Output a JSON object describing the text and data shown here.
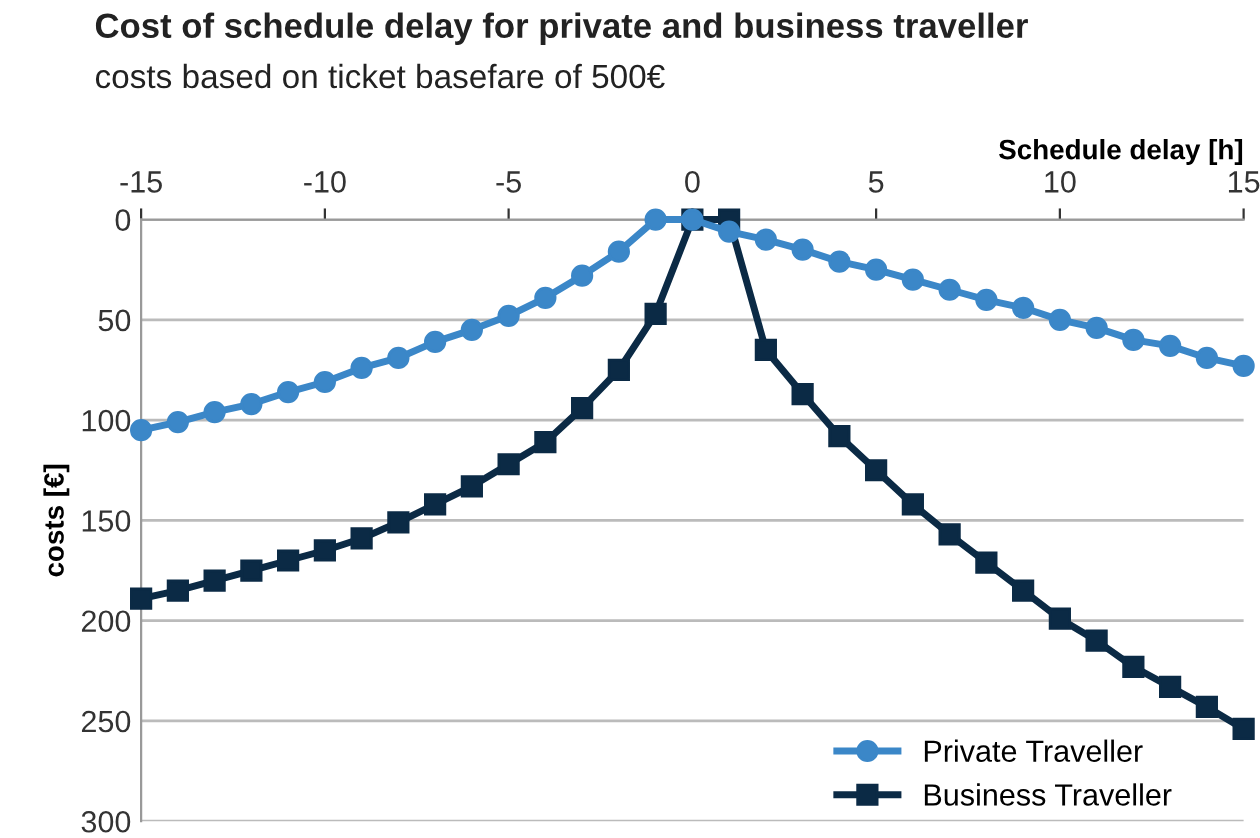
{
  "chart_data": {
    "type": "line",
    "title": "Cost of schedule delay for private and business traveller",
    "subtitle": "costs based on ticket basefare of 500€",
    "xlabel": "Schedule delay [h]",
    "ylabel": "costs [€]",
    "x": [
      -15,
      -14,
      -13,
      -12,
      -11,
      -10,
      -9,
      -8,
      -7,
      -6,
      -5,
      -4,
      -3,
      -2,
      -1,
      0,
      1,
      2,
      3,
      4,
      5,
      6,
      7,
      8,
      9,
      10,
      11,
      12,
      13,
      14,
      15
    ],
    "series": [
      {
        "name": "Private Traveller",
        "color": "#3b87c8",
        "marker": "circle",
        "values": [
          105,
          101,
          96,
          92,
          86,
          81,
          74,
          69,
          61,
          55,
          48,
          39,
          28,
          16,
          0,
          0,
          6,
          10,
          15,
          21,
          25,
          30,
          35,
          40,
          44,
          50,
          54,
          60,
          63,
          69,
          73
        ]
      },
      {
        "name": "Business Traveller",
        "color": "#0b2a45",
        "marker": "square",
        "values": [
          189,
          185,
          180,
          175,
          170,
          165,
          159,
          151,
          142,
          133,
          122,
          111,
          94,
          75,
          47,
          0,
          0,
          65,
          87,
          108,
          125,
          142,
          157,
          171,
          185,
          199,
          210,
          223,
          233,
          243,
          254
        ]
      }
    ],
    "xlim": [
      -15,
      15
    ],
    "xticks": [
      -15,
      -10,
      -5,
      0,
      5,
      10,
      15
    ],
    "ylim": [
      300,
      0
    ],
    "yticks": [
      0,
      50,
      100,
      150,
      200,
      250,
      300
    ],
    "grid": "y",
    "legend": "bottom right",
    "line_style": "solid"
  }
}
